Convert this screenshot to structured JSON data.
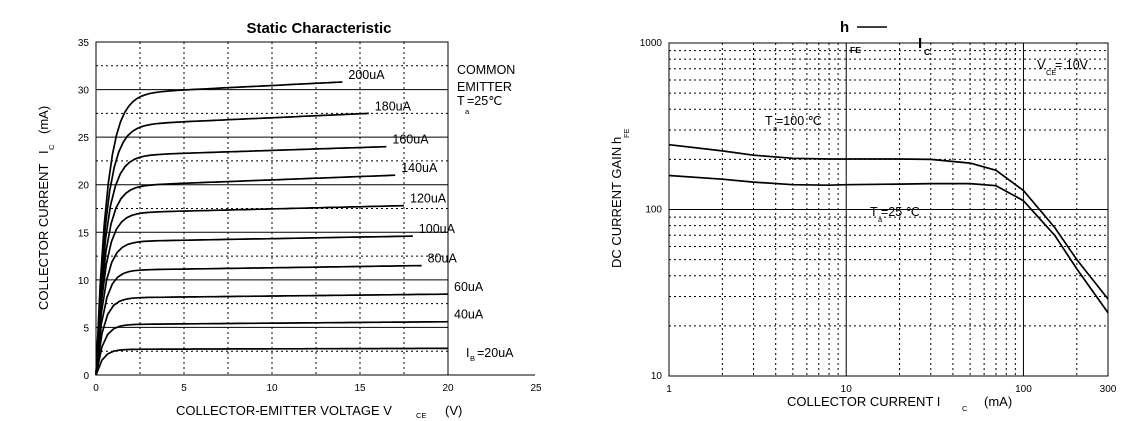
{
  "chart_data": [
    {
      "type": "line",
      "title": "Static Characteristic",
      "xlabel": "COLLECTOR-EMITTER VOLTAGE V",
      "xlabel_sub": "CE",
      "xlabel_unit": "(V)",
      "ylabel": "COLLECTOR CURRENT",
      "ylabel_sym": "I",
      "ylabel_sub": "C",
      "ylabel_unit": "(mA)",
      "xlim": [
        0,
        25
      ],
      "ylim": [
        0,
        35
      ],
      "xticks": [
        "0",
        "5",
        "10",
        "15",
        "20",
        "25"
      ],
      "yticks": [
        "0",
        "5",
        "10",
        "15",
        "20",
        "25",
        "30",
        "35"
      ],
      "annotation": {
        "line1": "COMMON",
        "line2": "EMITTER",
        "line3_sym": "T",
        "line3_sub": "a",
        "line3_val": "=25℃"
      },
      "ib_label": {
        "sym": "I",
        "sub": "B",
        "val": "=20uA"
      },
      "series": [
        {
          "name": "20uA",
          "label": "=20uA",
          "sat": 2.7,
          "end": 2.8,
          "xend": 20
        },
        {
          "name": "40uA",
          "label": "40uA",
          "sat": 5.3,
          "end": 5.6,
          "xend": 20
        },
        {
          "name": "60uA",
          "label": "60uA",
          "sat": 8.1,
          "end": 8.5,
          "xend": 20
        },
        {
          "name": "80uA",
          "label": "80uA",
          "sat": 11.0,
          "end": 11.5,
          "xend": 18.5
        },
        {
          "name": "100uA",
          "label": "100uA",
          "sat": 14.0,
          "end": 14.6,
          "xend": 18
        },
        {
          "name": "120uA",
          "label": "120uA",
          "sat": 17.0,
          "end": 17.8,
          "xend": 17.5
        },
        {
          "name": "140uA",
          "label": "140uA",
          "sat": 19.8,
          "end": 21.0,
          "xend": 17
        },
        {
          "name": "160uA",
          "label": "160uA",
          "sat": 23.0,
          "end": 24.0,
          "xend": 16.5
        },
        {
          "name": "180uA",
          "label": "180uA",
          "sat": 26.2,
          "end": 27.5,
          "xend": 15.5
        },
        {
          "name": "200uA",
          "label": "200uA",
          "sat": 29.5,
          "end": 30.8,
          "xend": 14
        }
      ]
    },
    {
      "type": "line",
      "title_sym": "h",
      "title_sub": "FE",
      "title_mid_sym": "I",
      "title_mid_sub": "C",
      "xlabel": "COLLECTOR CURRENT I",
      "xlabel_sub": "C",
      "xlabel_unit": "(mA)",
      "ylabel": "DC CURRENT GAIN",
      "ylabel_sym": "h",
      "ylabel_sub": "FE",
      "xscale": "log",
      "yscale": "log",
      "xlim": [
        1,
        300
      ],
      "ylim": [
        10,
        1000
      ],
      "xticks": [
        "1",
        "10",
        "100",
        "300"
      ],
      "yticks": [
        "10",
        "100",
        "1000"
      ],
      "annotation": {
        "sym": "V",
        "sub": "CE",
        "val": "= 10V"
      },
      "series": [
        {
          "name_sym": "T",
          "name_sub": "a",
          "name_val": "=100 ℃",
          "points": [
            [
              1,
              245
            ],
            [
              2,
              225
            ],
            [
              3,
              212
            ],
            [
              5,
              203
            ],
            [
              8,
              201
            ],
            [
              10,
              201
            ],
            [
              20,
              201
            ],
            [
              30,
              200
            ],
            [
              50,
              190
            ],
            [
              70,
              172
            ],
            [
              100,
              130
            ],
            [
              150,
              78
            ],
            [
              200,
              50
            ],
            [
              300,
              29
            ]
          ]
        },
        {
          "name_sym": "T",
          "name_sub": "a",
          "name_val": "=25 ℃",
          "points": [
            [
              1,
              160
            ],
            [
              2,
              152
            ],
            [
              3,
              146
            ],
            [
              5,
              141
            ],
            [
              8,
              140
            ],
            [
              10,
              141
            ],
            [
              20,
              142
            ],
            [
              30,
              143
            ],
            [
              50,
              143
            ],
            [
              70,
              139
            ],
            [
              100,
              113
            ],
            [
              150,
              70
            ],
            [
              200,
              44
            ],
            [
              300,
              24
            ]
          ]
        }
      ]
    }
  ]
}
